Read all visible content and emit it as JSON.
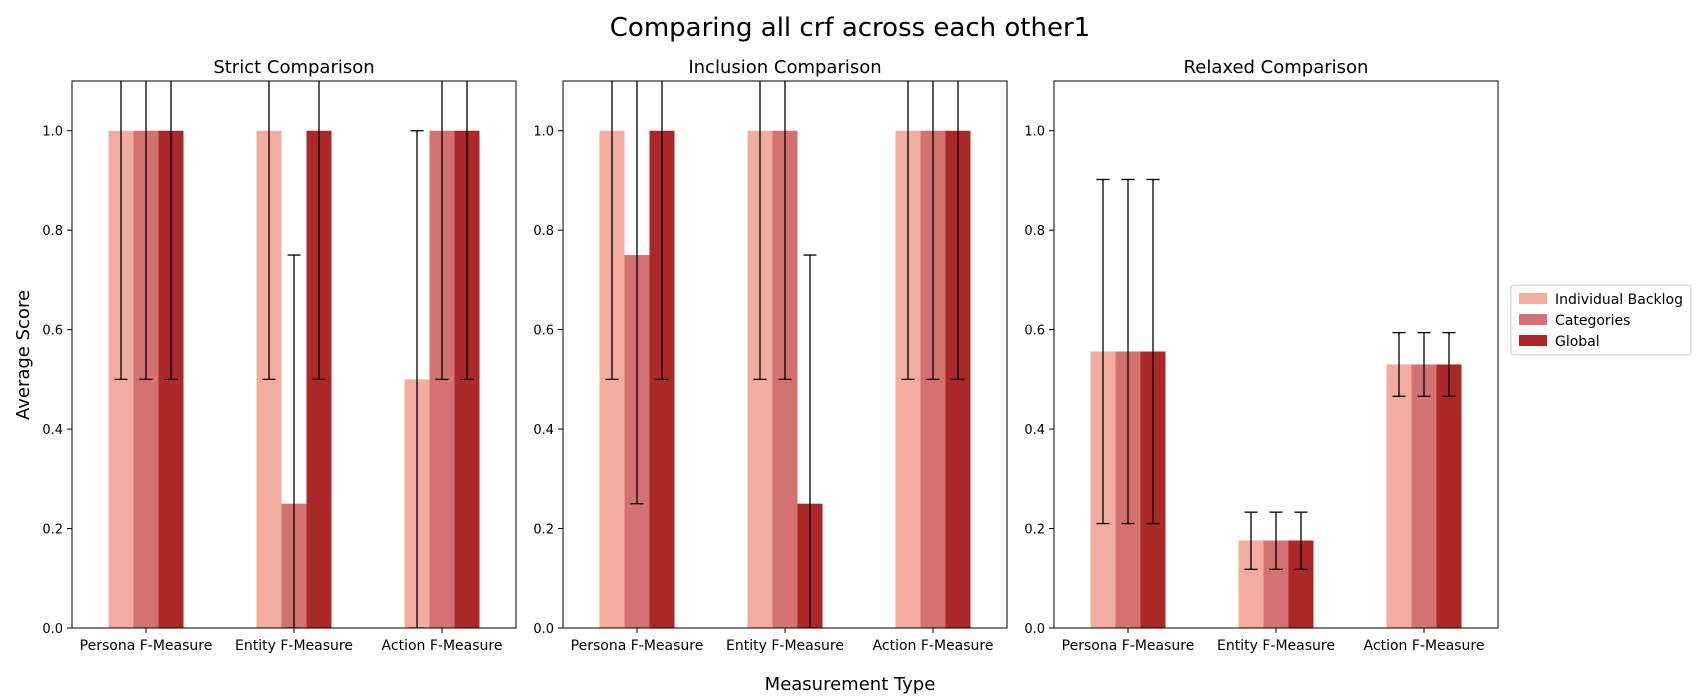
{
  "figure": {
    "title": "Comparing all crf across each other1",
    "xlabel": "Measurement Type",
    "ylabel": "Average Score"
  },
  "legend": {
    "placement": "right-center",
    "entries": [
      "Individual Backlog",
      "Categories",
      "Global"
    ]
  },
  "colors": {
    "Individual Backlog": "#f2aca0",
    "Categories": "#d47272",
    "Global": "#aa2828",
    "error_bar": "#000000"
  },
  "chart_data": [
    {
      "type": "bar",
      "title": "Strict Comparison",
      "categories": [
        "Persona F-Measure",
        "Entity F-Measure",
        "Action F-Measure"
      ],
      "ylim": [
        0,
        1.1
      ],
      "yticks": [
        "0.0",
        "0.2",
        "0.4",
        "0.6",
        "0.8",
        "1.0"
      ],
      "grid": false,
      "series": [
        {
          "name": "Individual Backlog",
          "values": [
            1.0,
            1.0,
            0.5
          ],
          "err_low": [
            0.5,
            0.5,
            0.0
          ],
          "err_high": [
            1.5,
            1.5,
            1.0
          ]
        },
        {
          "name": "Categories",
          "values": [
            1.0,
            0.25,
            1.0
          ],
          "err_low": [
            0.5,
            0.0,
            0.5
          ],
          "err_high": [
            1.5,
            0.75,
            1.5
          ]
        },
        {
          "name": "Global",
          "values": [
            1.0,
            1.0,
            1.0
          ],
          "err_low": [
            0.5,
            0.5,
            0.5
          ],
          "err_high": [
            1.5,
            1.5,
            1.5
          ]
        }
      ]
    },
    {
      "type": "bar",
      "title": "Inclusion Comparison",
      "categories": [
        "Persona F-Measure",
        "Entity F-Measure",
        "Action F-Measure"
      ],
      "ylim": [
        0,
        1.1
      ],
      "yticks": [
        "0.0",
        "0.2",
        "0.4",
        "0.6",
        "0.8",
        "1.0"
      ],
      "grid": false,
      "series": [
        {
          "name": "Individual Backlog",
          "values": [
            1.0,
            1.0,
            1.0
          ],
          "err_low": [
            0.5,
            0.5,
            0.5
          ],
          "err_high": [
            1.5,
            1.5,
            1.5
          ]
        },
        {
          "name": "Categories",
          "values": [
            0.75,
            1.0,
            1.0
          ],
          "err_low": [
            0.25,
            0.5,
            0.5
          ],
          "err_high": [
            1.25,
            1.5,
            1.5
          ]
        },
        {
          "name": "Global",
          "values": [
            1.0,
            0.25,
            1.0
          ],
          "err_low": [
            0.5,
            0.0,
            0.5
          ],
          "err_high": [
            1.5,
            0.75,
            1.5
          ]
        }
      ]
    },
    {
      "type": "bar",
      "title": "Relaxed Comparison",
      "categories": [
        "Persona F-Measure",
        "Entity F-Measure",
        "Action F-Measure"
      ],
      "ylim": [
        0,
        1.1
      ],
      "yticks": [
        "0.0",
        "0.2",
        "0.4",
        "0.6",
        "0.8",
        "1.0"
      ],
      "grid": false,
      "series": [
        {
          "name": "Individual Backlog",
          "values": [
            0.556,
            0.176,
            0.53
          ],
          "err_low": [
            0.21,
            0.118,
            0.466
          ],
          "err_high": [
            0.902,
            0.233,
            0.594
          ]
        },
        {
          "name": "Categories",
          "values": [
            0.556,
            0.176,
            0.53
          ],
          "err_low": [
            0.21,
            0.118,
            0.466
          ],
          "err_high": [
            0.902,
            0.233,
            0.594
          ]
        },
        {
          "name": "Global",
          "values": [
            0.556,
            0.176,
            0.53
          ],
          "err_low": [
            0.21,
            0.118,
            0.466
          ],
          "err_high": [
            0.902,
            0.233,
            0.594
          ]
        }
      ]
    }
  ]
}
